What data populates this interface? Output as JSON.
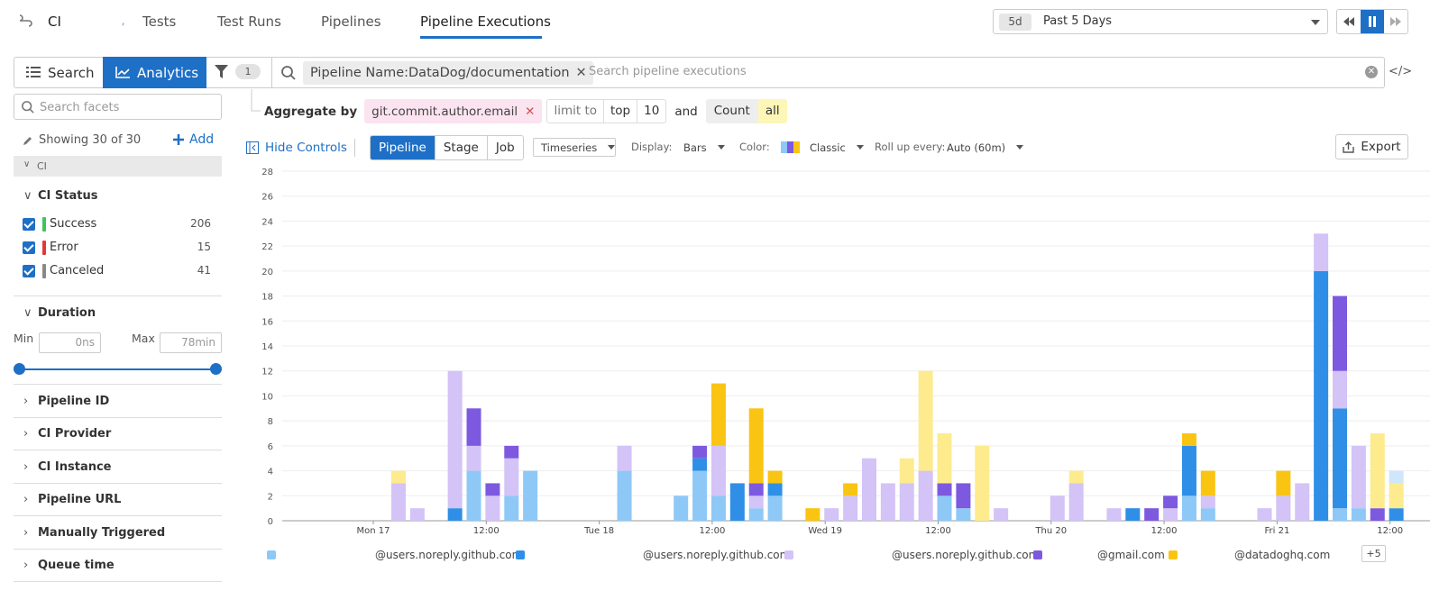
{
  "brand": "CI",
  "brand_dots": "⠀ ,  .",
  "nav": {
    "tabs": [
      "Tests",
      "Test Runs",
      "Pipelines",
      "Pipeline Executions"
    ],
    "active": "Pipeline Executions"
  },
  "time": {
    "badge": "5d",
    "label": "Past 5 Days"
  },
  "search": {
    "search_label": "Search",
    "analytics_label": "Analytics",
    "filter_count": "1",
    "chip": "Pipeline Name:DataDog/documentation",
    "placeholder": "Search pipeline executions",
    "code_icon": "</>"
  },
  "facets": {
    "search_placeholder": "Search facets",
    "showing": "Showing 30 of 30",
    "add_label": "Add",
    "group": "CI",
    "ci_status": {
      "title": "CI Status",
      "items": [
        {
          "label": "Success",
          "count": "206",
          "color": "#3bc55a"
        },
        {
          "label": "Error",
          "count": "15",
          "color": "#e5373b"
        },
        {
          "label": "Canceled",
          "count": "41",
          "color": "#888888"
        }
      ]
    },
    "duration": {
      "title": "Duration",
      "min_label": "Min",
      "max_label": "Max",
      "min": "0ns",
      "max": "78min",
      "range": [
        0,
        1
      ]
    },
    "sections": [
      "Pipeline ID",
      "CI Provider",
      "CI Instance",
      "Pipeline URL",
      "Manually Triggered",
      "Queue time"
    ]
  },
  "aggregate": {
    "label": "Aggregate by",
    "field": "git.commit.author.email",
    "limit_label": "limit to",
    "top": "top",
    "n": "10",
    "and": "and",
    "count": "Count",
    "all": "all"
  },
  "controls": {
    "hide": "Hide Controls",
    "levels": [
      "Pipeline",
      "Stage",
      "Job"
    ],
    "active_level": "Pipeline",
    "viz": "Timeseries",
    "display_label": "Display:",
    "display": "Bars",
    "color_label": "Color:",
    "color": "Classic",
    "rollup_label": "Roll up every:",
    "rollup": "Auto (60m)",
    "export": "Export"
  },
  "chart_data": {
    "type": "bar",
    "stacked": true,
    "ylim": [
      0,
      28
    ],
    "yticks": [
      "0",
      "2",
      "4",
      "6",
      "8",
      "10",
      "12",
      "14",
      "16",
      "18",
      "20",
      "22",
      "24",
      "26",
      "28"
    ],
    "xticks": [
      "Mon 17",
      "12:00",
      "Tue 18",
      "12:00",
      "Wed 19",
      "12:00",
      "Thu 20",
      "12:00",
      "Fri 21",
      "12:00"
    ],
    "colors": [
      "#8ec8f6",
      "#2f8fe6",
      "#d3c3f6",
      "#7d59e0",
      "#fac413",
      "#fdeb8e",
      "#cfe6fb"
    ],
    "series_names": [
      "@users.noreply.github.com",
      "@users.noreply.github.com",
      "@users.noreply.github.com",
      "@gmail.com",
      "@datadoghq.com"
    ],
    "bars": [
      {
        "slot": 0,
        "s": [
          0,
          0,
          3,
          0,
          0,
          1
        ]
      },
      {
        "slot": 1,
        "s": [
          0,
          0,
          1,
          0,
          0,
          0
        ]
      },
      {
        "slot": 3,
        "s": [
          0,
          1,
          11,
          0,
          0,
          0
        ]
      },
      {
        "slot": 4,
        "s": [
          4,
          0,
          2,
          3,
          0,
          0
        ]
      },
      {
        "slot": 5,
        "s": [
          0,
          0,
          2,
          1,
          0,
          0
        ]
      },
      {
        "slot": 6,
        "s": [
          2,
          0,
          3,
          1,
          0,
          0
        ]
      },
      {
        "slot": 7,
        "s": [
          4,
          0,
          0,
          0,
          0,
          0
        ]
      },
      {
        "slot": 12,
        "s": [
          4,
          0,
          2,
          0,
          0,
          0
        ]
      },
      {
        "slot": 15,
        "s": [
          2,
          0,
          0,
          0,
          0,
          0
        ]
      },
      {
        "slot": 16,
        "s": [
          4,
          1,
          0,
          1,
          0,
          0
        ]
      },
      {
        "slot": 17,
        "s": [
          2,
          0,
          4,
          0,
          5,
          0
        ]
      },
      {
        "slot": 18,
        "s": [
          0,
          3,
          0,
          0,
          0,
          0
        ]
      },
      {
        "slot": 19,
        "s": [
          1,
          0,
          1,
          1,
          6,
          0
        ]
      },
      {
        "slot": 20,
        "s": [
          2,
          1,
          0,
          0,
          1,
          0
        ]
      },
      {
        "slot": 22,
        "s": [
          0,
          0,
          0,
          0,
          1,
          0
        ]
      },
      {
        "slot": 23,
        "s": [
          0,
          0,
          1,
          0,
          0,
          0
        ]
      },
      {
        "slot": 24,
        "s": [
          0,
          0,
          2,
          0,
          1,
          0
        ]
      },
      {
        "slot": 25,
        "s": [
          0,
          0,
          5,
          0,
          0,
          0
        ]
      },
      {
        "slot": 26,
        "s": [
          0,
          0,
          3,
          0,
          0,
          0
        ]
      },
      {
        "slot": 27,
        "s": [
          0,
          0,
          3,
          0,
          0,
          2
        ]
      },
      {
        "slot": 28,
        "s": [
          0,
          0,
          4,
          0,
          0,
          8
        ]
      },
      {
        "slot": 29,
        "s": [
          2,
          0,
          0,
          1,
          0,
          4
        ]
      },
      {
        "slot": 30,
        "s": [
          1,
          0,
          0,
          2,
          0,
          0
        ]
      },
      {
        "slot": 31,
        "s": [
          0,
          0,
          0,
          0,
          0,
          6
        ]
      },
      {
        "slot": 32,
        "s": [
          0,
          0,
          1,
          0,
          0,
          0
        ]
      },
      {
        "slot": 35,
        "s": [
          0,
          0,
          2,
          0,
          0,
          0
        ]
      },
      {
        "slot": 36,
        "s": [
          0,
          0,
          3,
          0,
          0,
          1
        ]
      },
      {
        "slot": 38,
        "s": [
          0,
          0,
          1,
          0,
          0,
          0
        ]
      },
      {
        "slot": 39,
        "s": [
          0,
          1,
          0,
          0,
          0,
          0
        ]
      },
      {
        "slot": 40,
        "s": [
          0,
          0,
          0,
          1,
          0,
          0
        ]
      },
      {
        "slot": 41,
        "s": [
          0,
          0,
          1,
          1,
          0,
          0
        ]
      },
      {
        "slot": 42,
        "s": [
          2,
          4,
          0,
          0,
          1,
          0
        ]
      },
      {
        "slot": 43,
        "s": [
          1,
          0,
          1,
          0,
          2,
          0
        ]
      },
      {
        "slot": 46,
        "s": [
          0,
          0,
          1,
          0,
          0,
          0
        ]
      },
      {
        "slot": 47,
        "s": [
          0,
          0,
          2,
          0,
          2,
          0
        ]
      },
      {
        "slot": 48,
        "s": [
          0,
          0,
          3,
          0,
          0,
          0
        ]
      },
      {
        "slot": 49,
        "s": [
          0,
          20,
          3,
          0,
          0,
          0
        ]
      },
      {
        "slot": 50,
        "s": [
          1,
          8,
          3,
          6,
          0,
          0
        ]
      },
      {
        "slot": 51,
        "s": [
          1,
          0,
          5,
          0,
          0,
          0
        ]
      },
      {
        "slot": 52,
        "s": [
          0,
          0,
          0,
          1,
          0,
          6
        ]
      },
      {
        "slot": 53,
        "s": [
          0,
          1,
          0,
          0,
          0,
          2,
          1
        ]
      }
    ]
  },
  "legend": {
    "more": "+5"
  }
}
